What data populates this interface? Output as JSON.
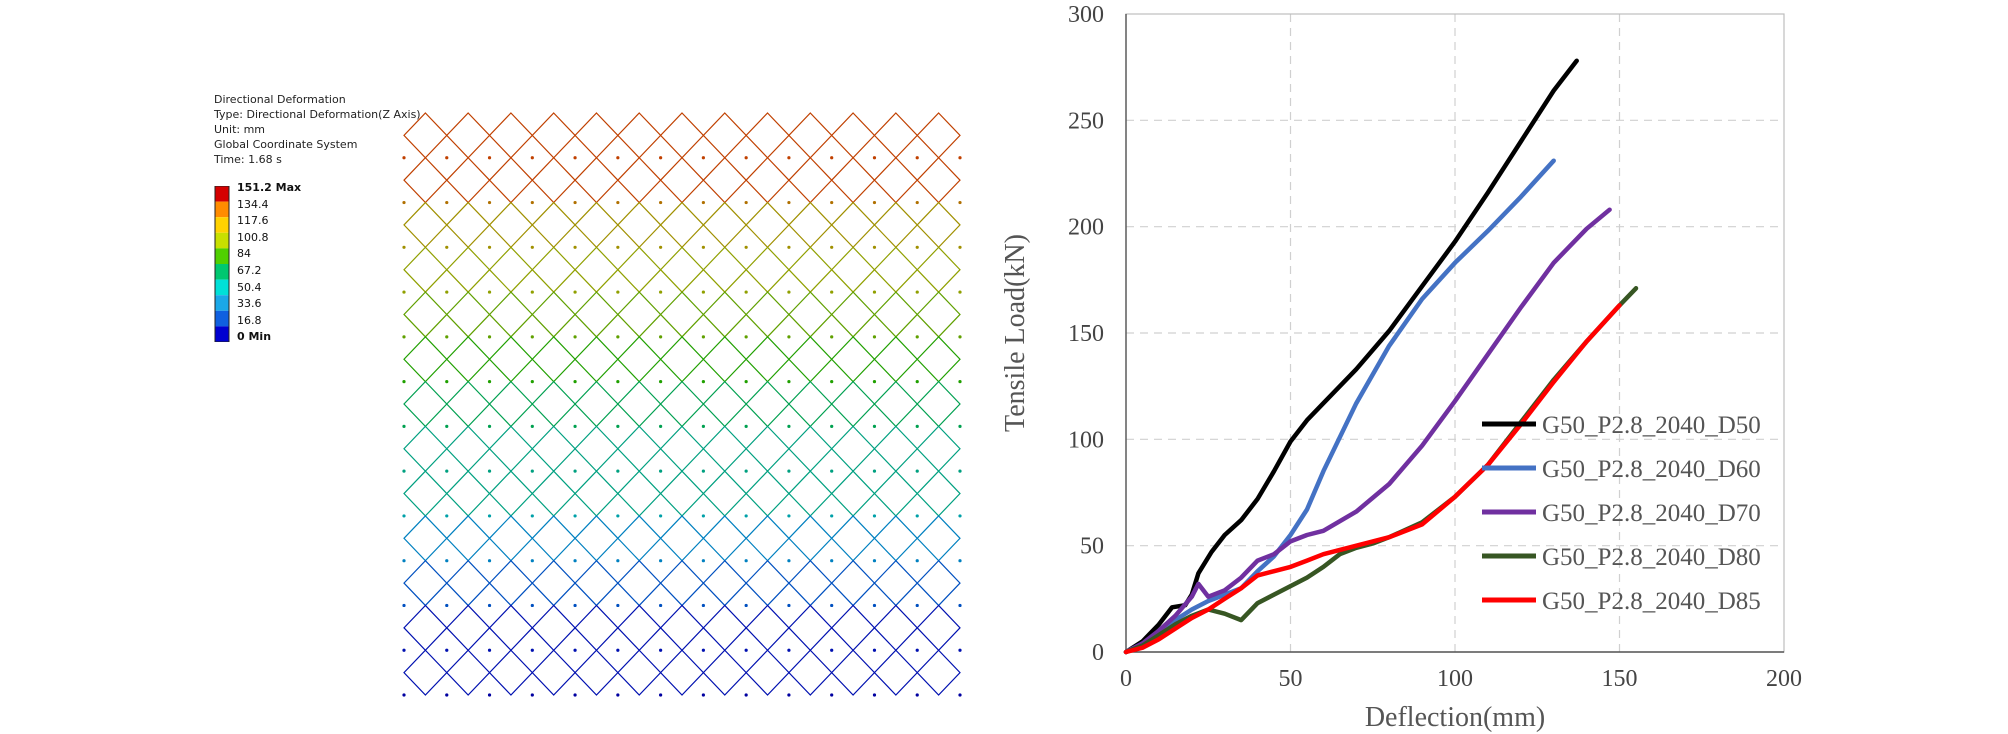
{
  "fea_result": {
    "title_lines": [
      "Directional Deformation",
      "Type: Directional Deformation(Z Axis)",
      "Unit: mm",
      "Global Coordinate System",
      "Time: 1.68 s"
    ],
    "legend_values": [
      "151.2 Max",
      "134.4",
      "117.6",
      "100.8",
      "84",
      "67.2",
      "50.4",
      "33.6",
      "16.8",
      "0 Min"
    ],
    "legend_colors": [
      "#d40000",
      "#ff8c00",
      "#ffd200",
      "#c8e000",
      "#50d000",
      "#00c870",
      "#00e0d8",
      "#1aa8e8",
      "#1060e0",
      "#0000d0"
    ]
  },
  "chart_data": {
    "type": "line",
    "xlabel": "Deflection(mm)",
    "ylabel": "Tensile Load(kN)",
    "xlim": [
      0,
      200
    ],
    "ylim": [
      0,
      300
    ],
    "xticks": [
      "0",
      "50",
      "100",
      "150",
      "200"
    ],
    "yticks": [
      "0",
      "50",
      "100",
      "150",
      "200",
      "250",
      "300"
    ],
    "grid": true,
    "legend_position": "bottom-right",
    "series": [
      {
        "name": "G50_P2.8_2040_D50",
        "color": "#000000",
        "x": [
          0,
          5,
          10,
          14,
          18,
          20,
          22,
          26,
          30,
          35,
          40,
          45,
          50,
          55,
          60,
          70,
          80,
          90,
          100,
          110,
          120,
          130,
          137
        ],
        "y": [
          0,
          5,
          13,
          21,
          22,
          27,
          37,
          47,
          55,
          62,
          72,
          85,
          99,
          109,
          117,
          133,
          151,
          172,
          193,
          216,
          240,
          264,
          278
        ]
      },
      {
        "name": "G50_P2.8_2040_D60",
        "color": "#4472c4",
        "x": [
          0,
          5,
          10,
          15,
          20,
          25,
          30,
          35,
          40,
          45,
          50,
          55,
          60,
          70,
          80,
          90,
          100,
          110,
          120,
          130
        ],
        "y": [
          0,
          4,
          9,
          15,
          20,
          24,
          27,
          30,
          38,
          45,
          55,
          67,
          85,
          117,
          144,
          166,
          183,
          198,
          214,
          231
        ]
      },
      {
        "name": "G50_P2.8_2040_D70",
        "color": "#7030a0",
        "x": [
          0,
          5,
          10,
          15,
          20,
          22,
          25,
          30,
          35,
          40,
          45,
          50,
          55,
          60,
          70,
          80,
          90,
          100,
          110,
          120,
          130,
          140,
          147
        ],
        "y": [
          0,
          4,
          10,
          17,
          26,
          32,
          26,
          29,
          35,
          43,
          46,
          52,
          55,
          57,
          66,
          79,
          97,
          118,
          140,
          162,
          183,
          199,
          208
        ]
      },
      {
        "name": "G50_P2.8_2040_D80",
        "color": "#375623",
        "x": [
          0,
          5,
          10,
          15,
          20,
          25,
          30,
          35,
          40,
          45,
          50,
          55,
          60,
          65,
          70,
          75,
          80,
          90,
          100,
          110,
          120,
          130,
          140,
          150,
          155
        ],
        "y": [
          0,
          3,
          8,
          13,
          17,
          20,
          18,
          15,
          23,
          27,
          31,
          35,
          40,
          46,
          49,
          51,
          54,
          61,
          73,
          88,
          108,
          128,
          146,
          163,
          171
        ]
      },
      {
        "name": "G50_P2.8_2040_D85",
        "color": "#ff0000",
        "x": [
          0,
          5,
          10,
          15,
          20,
          25,
          30,
          35,
          40,
          45,
          50,
          55,
          60,
          65,
          70,
          75,
          80,
          90,
          100,
          110,
          120,
          130,
          140,
          150
        ],
        "y": [
          0,
          2,
          6,
          11,
          16,
          20,
          25,
          30,
          36,
          38,
          40,
          43,
          46,
          48,
          50,
          52,
          54,
          60,
          73,
          88,
          107,
          127,
          146,
          163
        ]
      }
    ]
  }
}
